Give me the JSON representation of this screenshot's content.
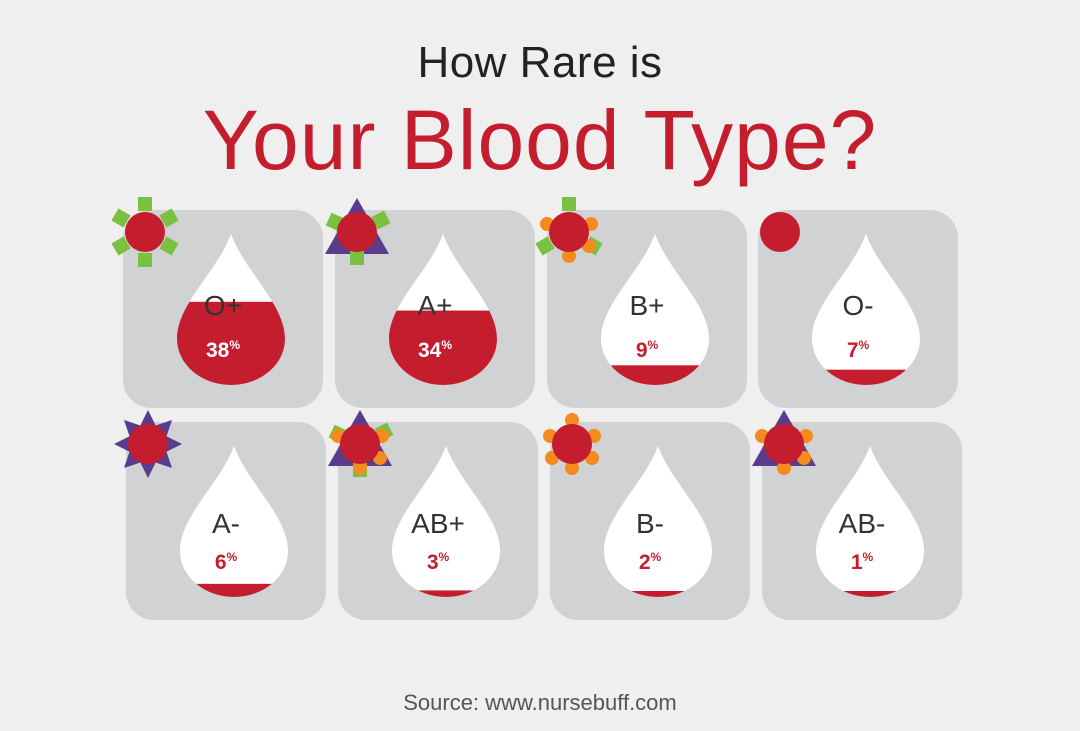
{
  "header": {
    "title_line1": "How Rare is",
    "title_line2": "Your Blood Type?"
  },
  "colors": {
    "blood": "#c41e2e",
    "card": "#d1d2d4",
    "green": "#7ac142",
    "purple": "#5b3b8c",
    "orange": "#f58a1f"
  },
  "blood_types": [
    {
      "type": "O+",
      "percent": "38",
      "unit": "%",
      "fraction": 0.38,
      "antigen": "green-square-marker-icon"
    },
    {
      "type": "A+",
      "percent": "34",
      "unit": "%",
      "fraction": 0.34,
      "antigen": "purple-triangle-green-square-marker-icon"
    },
    {
      "type": "B+",
      "percent": "9",
      "unit": "%",
      "fraction": 0.09,
      "antigen": "orange-heart-green-square-marker-icon"
    },
    {
      "type": "O-",
      "percent": "7",
      "unit": "%",
      "fraction": 0.07,
      "antigen": "plain-cell-icon"
    },
    {
      "type": "A-",
      "percent": "6",
      "unit": "%",
      "fraction": 0.06,
      "antigen": "purple-star-marker-icon"
    },
    {
      "type": "AB+",
      "percent": "3",
      "unit": "%",
      "fraction": 0.03,
      "antigen": "purple-triangle-orange-heart-green-square-marker-icon"
    },
    {
      "type": "B-",
      "percent": "2",
      "unit": "%",
      "fraction": 0.02,
      "antigen": "orange-heart-marker-icon"
    },
    {
      "type": "AB-",
      "percent": "1",
      "unit": "%",
      "fraction": 0.01,
      "antigen": "purple-triangle-orange-heart-marker-icon"
    }
  ],
  "footer": {
    "source": "Source: www.nursebuff.com"
  }
}
